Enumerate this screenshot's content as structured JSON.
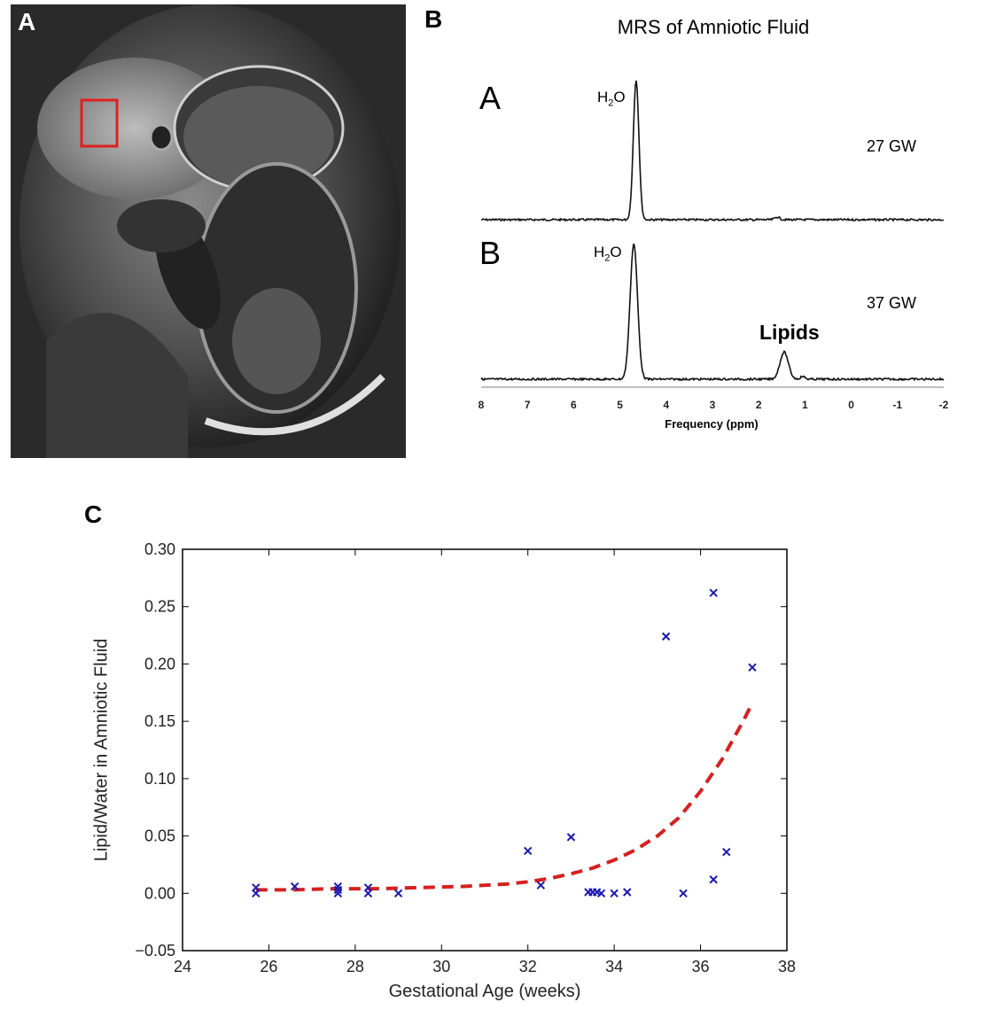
{
  "panel_a": {
    "label": "A",
    "image_description_icon": "mri-image",
    "roi_color": "#e02020"
  },
  "panel_b": {
    "label": "B",
    "title": "MRS of Amniotic Fluid",
    "xlabel": "Frequency (ppm)",
    "x_ticks": [
      "8",
      "7",
      "6",
      "5",
      "4",
      "3",
      "2",
      "1",
      "0",
      "-1",
      "-2"
    ],
    "xlim": [
      8,
      -2
    ],
    "spectra": [
      {
        "label": "A",
        "peak_label": "H2O",
        "ga_label": "27 GW",
        "peaks": [
          {
            "ppm": 4.65,
            "height": 1.0,
            "width": 0.06
          },
          {
            "ppm": 1.6,
            "height": 0.02,
            "width": 0.05
          }
        ]
      },
      {
        "label": "B",
        "peak_label": "H2O",
        "ga_label": "37 GW",
        "lipid_label": "Lipids",
        "peaks": [
          {
            "ppm": 4.7,
            "height": 1.0,
            "width": 0.08
          },
          {
            "ppm": 1.45,
            "height": 0.2,
            "width": 0.09
          },
          {
            "ppm": 1.05,
            "height": 0.02,
            "width": 0.05
          }
        ]
      }
    ]
  },
  "chart_data": {
    "type": "scatter",
    "panel_label": "C",
    "xlabel": "Gestational Age (weeks)",
    "ylabel": "Lipid/Water in Amniotic Fluid",
    "xlim": [
      24,
      38
    ],
    "ylim": [
      -0.05,
      0.3
    ],
    "x_ticks": [
      "24",
      "26",
      "28",
      "30",
      "32",
      "34",
      "36",
      "38"
    ],
    "y_ticks": [
      "−0.05",
      "0.00",
      "0.05",
      "0.10",
      "0.15",
      "0.20",
      "0.25",
      "0.30"
    ],
    "grid": false,
    "points": {
      "marker": "x",
      "color": "#1a1ab0",
      "x": [
        25.7,
        25.7,
        26.6,
        27.6,
        27.6,
        27.6,
        28.3,
        28.3,
        29.0,
        32.0,
        32.3,
        33.0,
        33.4,
        33.5,
        33.6,
        33.7,
        34.0,
        34.3,
        35.6,
        35.2,
        36.3,
        36.3,
        36.6,
        37.2
      ],
      "y": [
        0.005,
        0.0,
        0.006,
        0.006,
        0.003,
        0.0,
        0.005,
        0.0,
        0.0,
        0.037,
        0.007,
        0.049,
        0.001,
        0.001,
        0.001,
        0.0,
        0.0,
        0.001,
        0.0,
        0.224,
        0.262,
        0.012,
        0.036,
        0.197
      ]
    },
    "fit": {
      "style": "dashed",
      "color": "#d62020",
      "x": [
        25.7,
        26.5,
        27.5,
        28.5,
        29.5,
        30.5,
        31.5,
        32.0,
        32.5,
        33.0,
        33.5,
        34.0,
        34.5,
        35.0,
        35.5,
        36.0,
        36.5,
        37.0,
        37.2
      ],
      "y": [
        0.003,
        0.003,
        0.004,
        0.004,
        0.005,
        0.006,
        0.008,
        0.01,
        0.013,
        0.017,
        0.022,
        0.029,
        0.038,
        0.05,
        0.066,
        0.089,
        0.117,
        0.151,
        0.166
      ]
    }
  }
}
